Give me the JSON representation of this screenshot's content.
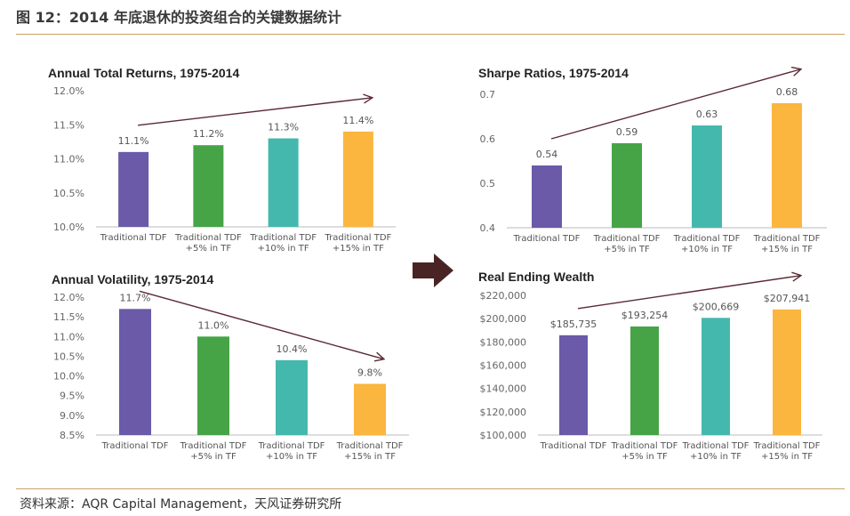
{
  "figure": {
    "title": "图 12：2014 年底退休的投资组合的关键数据统计",
    "source": "资料来源：AQR Capital Management，天风证券研究所"
  },
  "colors": [
    "#6a5aa8",
    "#46a447",
    "#45b8ae",
    "#fbb63f"
  ],
  "chart_data": [
    {
      "type": "bar",
      "title": "Annual Total Returns, 1975-2014",
      "categories": [
        [
          "Traditional TDF"
        ],
        [
          "Traditional TDF",
          "+5% in TF"
        ],
        [
          "Traditional TDF",
          "+10% in TF"
        ],
        [
          "Traditional TDF",
          "+15% in TF"
        ]
      ],
      "values": [
        11.1,
        11.2,
        11.3,
        11.4
      ],
      "data_labels": [
        "11.1%",
        "11.2%",
        "11.3%",
        "11.4%"
      ],
      "ylim": [
        10.0,
        12.0
      ],
      "yticks": [
        10.0,
        10.5,
        11.0,
        11.5,
        12.0
      ],
      "ytick_labels": [
        "10.0%",
        "10.5%",
        "11.0%",
        "11.5%",
        "12.0%"
      ],
      "trend_arrow": "up",
      "grid": false
    },
    {
      "type": "bar",
      "title": "Sharpe Ratios, 1975-2014",
      "categories": [
        [
          "Traditional TDF"
        ],
        [
          "Traditional TDF",
          "+5% in TF"
        ],
        [
          "Traditional TDF",
          "+10% in TF"
        ],
        [
          "Traditional TDF",
          "+15% in TF"
        ]
      ],
      "values": [
        0.54,
        0.59,
        0.63,
        0.68
      ],
      "data_labels": [
        "0.54",
        "0.59",
        "0.63",
        "0.68"
      ],
      "ylim": [
        0.4,
        0.7
      ],
      "yticks": [
        0.4,
        0.5,
        0.6,
        0.7
      ],
      "ytick_labels": [
        "0.4",
        "0.5",
        "0.6",
        "0.7"
      ],
      "trend_arrow": "up",
      "grid": false
    },
    {
      "type": "bar",
      "title": "Annual Volatility, 1975-2014",
      "categories": [
        [
          "Traditional TDF"
        ],
        [
          "Traditional TDF",
          "+5% in TF"
        ],
        [
          "Traditional TDF",
          "+10% in TF"
        ],
        [
          "Traditional TDF",
          "+15% in TF"
        ]
      ],
      "values": [
        11.7,
        11.0,
        10.4,
        9.8
      ],
      "data_labels": [
        "11.7%",
        "11.0%",
        "10.4%",
        "9.8%"
      ],
      "ylim": [
        8.5,
        12.0
      ],
      "yticks": [
        8.5,
        9.0,
        9.5,
        10.0,
        10.5,
        11.0,
        11.5,
        12.0
      ],
      "ytick_labels": [
        "8.5%",
        "9.0%",
        "9.5%",
        "10.0%",
        "10.5%",
        "11.0%",
        "11.5%",
        "12.0%"
      ],
      "trend_arrow": "down",
      "grid": false
    },
    {
      "type": "bar",
      "title": "Real Ending Wealth",
      "categories": [
        [
          "Traditional TDF"
        ],
        [
          "Traditional TDF",
          "+5% in TF"
        ],
        [
          "Traditional TDF",
          "+10% in TF"
        ],
        [
          "Traditional TDF",
          "+15% in TF"
        ]
      ],
      "values": [
        185735,
        193254,
        200669,
        207941
      ],
      "data_labels": [
        "$185,735",
        "$193,254",
        "$200,669",
        "$207,941"
      ],
      "ylim": [
        100000,
        220000
      ],
      "yticks": [
        100000,
        120000,
        140000,
        160000,
        180000,
        200000,
        220000
      ],
      "ytick_labels": [
        "$100,000",
        "$120,000",
        "$140,000",
        "$160,000",
        "$180,000",
        "$200,000",
        "$220,000"
      ],
      "trend_arrow": "up",
      "grid": false
    }
  ]
}
